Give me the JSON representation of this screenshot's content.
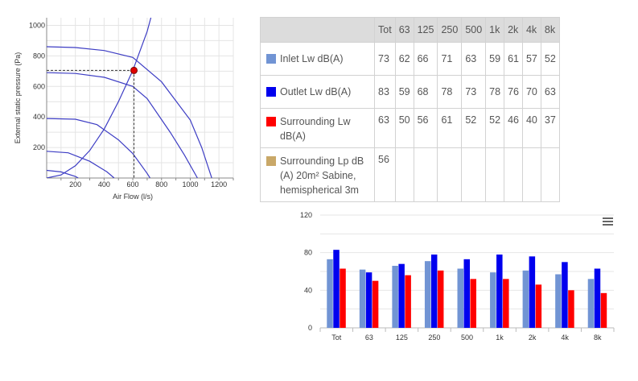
{
  "fan_chart": {
    "chart_data": {
      "type": "line",
      "xlabel": "Air Flow (l/s)",
      "ylabel": "External static pressure (Pa)",
      "xlim": [
        0,
        1300
      ],
      "ylim": [
        0,
        1050
      ],
      "x_ticks": [
        200,
        400,
        600,
        800,
        1000,
        1200
      ],
      "y_ticks": [
        200,
        400,
        600,
        800,
        1000
      ],
      "grid": true,
      "fan_curves": [
        [
          [
            0,
            860
          ],
          [
            200,
            855
          ],
          [
            400,
            835
          ],
          [
            600,
            790
          ],
          [
            800,
            630
          ],
          [
            1000,
            380
          ],
          [
            1080,
            200
          ],
          [
            1150,
            0
          ]
        ],
        [
          [
            0,
            690
          ],
          [
            200,
            685
          ],
          [
            400,
            660
          ],
          [
            600,
            600
          ],
          [
            700,
            520
          ],
          [
            860,
            300
          ],
          [
            960,
            150
          ],
          [
            1050,
            0
          ]
        ],
        [
          [
            0,
            390
          ],
          [
            200,
            385
          ],
          [
            350,
            350
          ],
          [
            500,
            250
          ],
          [
            600,
            160
          ],
          [
            700,
            30
          ],
          [
            720,
            0
          ]
        ],
        [
          [
            0,
            175
          ],
          [
            150,
            165
          ],
          [
            300,
            110
          ],
          [
            420,
            40
          ],
          [
            470,
            0
          ]
        ],
        [
          [
            0,
            50
          ],
          [
            100,
            40
          ],
          [
            200,
            10
          ],
          [
            220,
            0
          ]
        ]
      ],
      "system_curve": [
        [
          0,
          0
        ],
        [
          100,
          20
        ],
        [
          200,
          80
        ],
        [
          300,
          180
        ],
        [
          400,
          320
        ],
        [
          500,
          500
        ],
        [
          600,
          705
        ],
        [
          700,
          960
        ],
        [
          740,
          1100
        ]
      ],
      "duty_point": {
        "x": 608,
        "y": 705
      },
      "series_color": "#3d3dc4",
      "duty_point_color": "#e00000"
    }
  },
  "sound_table": {
    "headers": [
      "",
      "Tot",
      "63",
      "125",
      "250",
      "500",
      "1k",
      "2k",
      "4k",
      "8k"
    ],
    "rows": [
      {
        "label": "Inlet Lw dB(A)",
        "color": "#7194d4",
        "values": [
          "73",
          "62",
          "66",
          "71",
          "63",
          "59",
          "61",
          "57",
          "52"
        ]
      },
      {
        "label": "Outlet Lw dB(A)",
        "color": "#0000ee",
        "values": [
          "83",
          "59",
          "68",
          "78",
          "73",
          "78",
          "76",
          "70",
          "63"
        ]
      },
      {
        "label": "Surrounding Lw dB(A)",
        "color": "#ff0000",
        "values": [
          "63",
          "50",
          "56",
          "61",
          "52",
          "52",
          "46",
          "40",
          "37"
        ]
      },
      {
        "label": "Surrounding Lp dB (A) 20m² Sabine, hemispherical 3m",
        "color": "#c9a868",
        "values": [
          "56",
          "",
          "",
          "",
          "",
          "",
          "",
          "",
          ""
        ]
      }
    ]
  },
  "bar_chart": {
    "menu_icon": "hamburger-menu-icon",
    "chart_data": {
      "type": "bar",
      "categories": [
        "Tot",
        "63",
        "125",
        "250",
        "500",
        "1k",
        "2k",
        "4k",
        "8k"
      ],
      "series": [
        {
          "name": "Inlet Lw dB(A)",
          "color": "#7194d4",
          "values": [
            73,
            62,
            66,
            71,
            63,
            59,
            61,
            57,
            52
          ]
        },
        {
          "name": "Outlet Lw dB(A)",
          "color": "#0000ee",
          "values": [
            83,
            59,
            68,
            78,
            73,
            78,
            76,
            70,
            63
          ]
        },
        {
          "name": "Surrounding Lw dB(A)",
          "color": "#ff0000",
          "values": [
            63,
            50,
            56,
            61,
            52,
            52,
            46,
            40,
            37
          ]
        }
      ],
      "ylim": [
        0,
        120
      ],
      "y_ticks": [
        0,
        40,
        80,
        120
      ],
      "grid": true,
      "legend": "none"
    }
  }
}
